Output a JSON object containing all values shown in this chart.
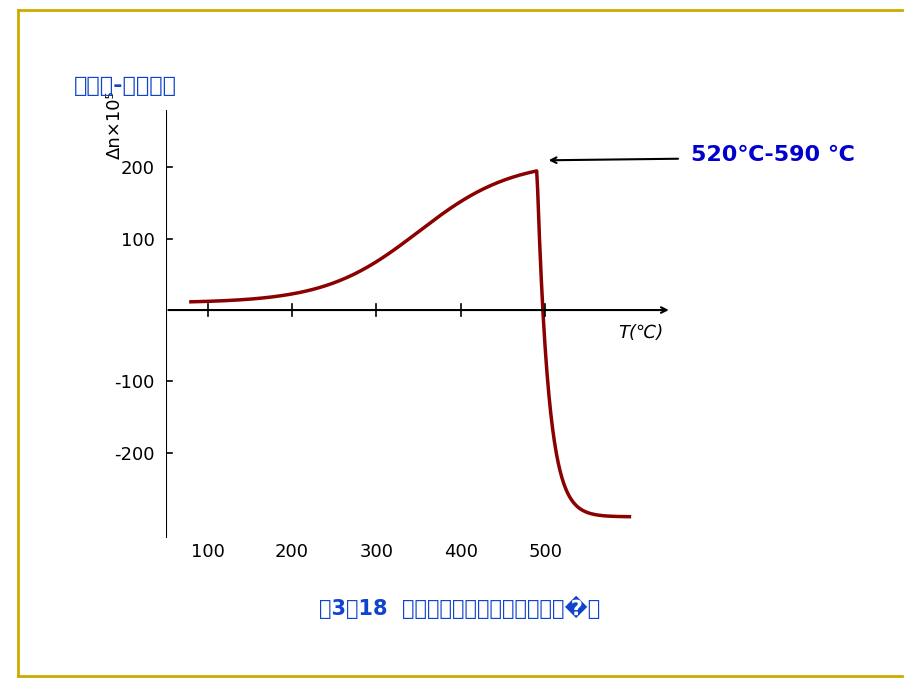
{
  "title": "折射率-温度曲线",
  "xlabel": "T(℃)",
  "ylabel": "Δn×10⁵",
  "caption": "图3－18  硅酸盐玻璃折射率随温度变化�线",
  "annotation_text": "520℃-590 ℃",
  "bg_color": "#ffffff",
  "title_color": "#1144cc",
  "caption_color": "#1144cc",
  "curve_color": "#8B0000",
  "annotation_bg": "#aaeeff",
  "annotation_text_color": "#0000cc",
  "border_color_top": "#ccaa00",
  "border_color_bottom": "#ccaa00",
  "xlim": [
    50,
    650
  ],
  "ylim": [
    -320,
    280
  ],
  "xticks": [
    100,
    200,
    300,
    400,
    500
  ],
  "yticks": [
    -200,
    -100,
    0,
    100,
    200
  ]
}
